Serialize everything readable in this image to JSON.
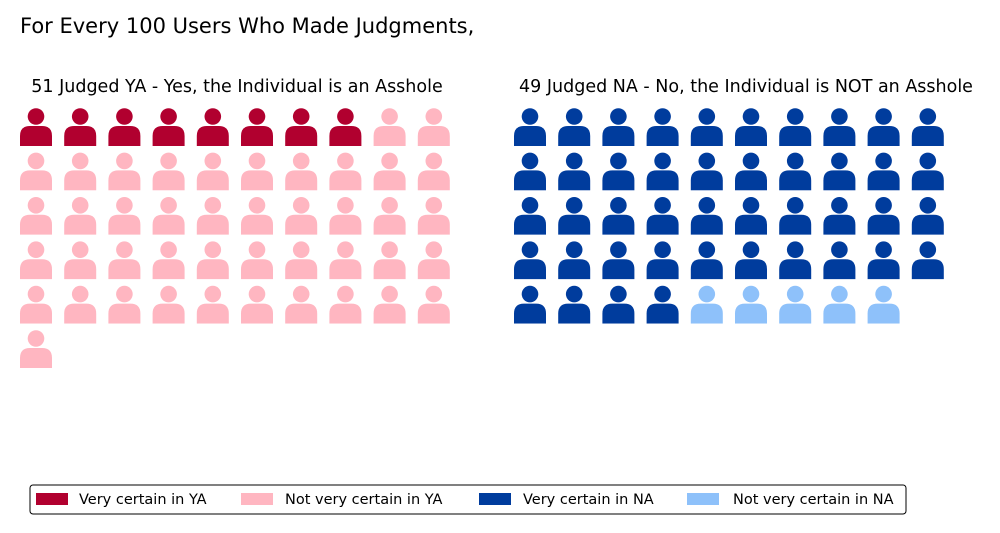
{
  "chart_data": {
    "type": "waffle",
    "title": "For Every 100 Users Who Made Judgments,",
    "panels": [
      {
        "title": "51 Judged YA - Yes, the Individual is an Asshole",
        "total": 51,
        "columns": 10,
        "segments": [
          {
            "name": "Very certain in YA",
            "count": 8,
            "color": "#b1002f"
          },
          {
            "name": "Not very certain in YA",
            "count": 43,
            "color": "#ffb6c1"
          }
        ]
      },
      {
        "title": "49 Judged NA - No, the Individual is NOT an Asshole",
        "total": 49,
        "columns": 10,
        "segments": [
          {
            "name": "Very certain in NA",
            "count": 44,
            "color": "#003c9d"
          },
          {
            "name": "Not very certain in NA",
            "count": 5,
            "color": "#8ec1fa"
          }
        ]
      }
    ],
    "icon": "person-icon",
    "legend": {
      "position": "bottom",
      "items": [
        {
          "label": "Very certain in YA",
          "color": "#b1002f"
        },
        {
          "label": "Not very certain in YA",
          "color": "#ffb6c1"
        },
        {
          "label": "Very certain in NA",
          "color": "#003c9d"
        },
        {
          "label": "Not very certain in NA",
          "color": "#8ec1fa"
        }
      ]
    }
  }
}
